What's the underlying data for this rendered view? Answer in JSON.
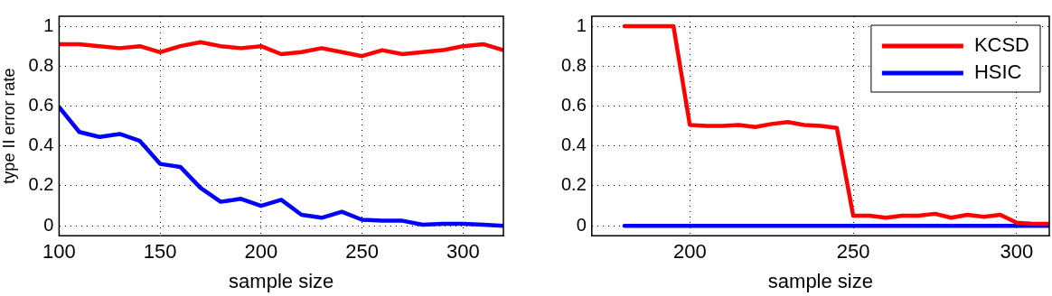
{
  "chart_data": [
    {
      "type": "line",
      "xlabel": "sample size",
      "ylabel": "type II error rate",
      "x": [
        100,
        110,
        120,
        130,
        140,
        150,
        160,
        170,
        180,
        190,
        200,
        210,
        220,
        230,
        240,
        250,
        260,
        270,
        280,
        290,
        300,
        310,
        320
      ],
      "series": [
        {
          "color": "#ff0000",
          "values": [
            0.91,
            0.91,
            0.9,
            0.89,
            0.9,
            0.87,
            0.9,
            0.92,
            0.9,
            0.89,
            0.9,
            0.86,
            0.87,
            0.89,
            0.87,
            0.85,
            0.88,
            0.86,
            0.87,
            0.88,
            0.9,
            0.91,
            0.88
          ]
        },
        {
          "color": "#0000ff",
          "values": [
            0.595,
            0.47,
            0.445,
            0.46,
            0.425,
            0.31,
            0.295,
            0.19,
            0.12,
            0.135,
            0.1,
            0.13,
            0.055,
            0.04,
            0.07,
            0.03,
            0.025,
            0.025,
            0.005,
            0.01,
            0.01,
            0.005,
            0.0
          ]
        }
      ],
      "xlim": [
        100,
        320
      ],
      "xticks": [
        100,
        150,
        200,
        250,
        300
      ],
      "ylim": [
        -0.05,
        1.05
      ],
      "yticks": [
        0,
        0.2,
        0.4,
        0.6,
        0.8,
        1
      ],
      "grid": true,
      "legend": false,
      "marker": "none",
      "line_style": "solid"
    },
    {
      "type": "line",
      "xlabel": "sample size",
      "x": [
        180,
        185,
        190,
        195,
        200,
        205,
        210,
        215,
        220,
        225,
        230,
        235,
        240,
        245,
        250,
        255,
        260,
        265,
        270,
        275,
        280,
        285,
        290,
        295,
        300,
        305,
        310
      ],
      "series": [
        {
          "name": "KCSD",
          "color": "#ff0000",
          "values": [
            1,
            1,
            1,
            1,
            0.505,
            0.5,
            0.5,
            0.505,
            0.495,
            0.51,
            0.52,
            0.505,
            0.5,
            0.49,
            0.05,
            0.05,
            0.04,
            0.05,
            0.05,
            0.06,
            0.04,
            0.055,
            0.045,
            0.055,
            0.015,
            0.01,
            0.01
          ]
        },
        {
          "name": "HSIC",
          "color": "#0000ff",
          "values": [
            0,
            0,
            0,
            0,
            0,
            0,
            0,
            0,
            0,
            0,
            0,
            0,
            0,
            0,
            0,
            0,
            0,
            0,
            0,
            0,
            0,
            0,
            0,
            0,
            0,
            0,
            0
          ]
        }
      ],
      "xlim": [
        170,
        310
      ],
      "xticks": [
        200,
        250,
        300
      ],
      "ylim": [
        -0.05,
        1.05
      ],
      "yticks": [
        0,
        0.2,
        0.4,
        0.6,
        0.8,
        1
      ],
      "grid": true,
      "legend": "top right",
      "marker": "none",
      "line_style": "solid"
    }
  ]
}
